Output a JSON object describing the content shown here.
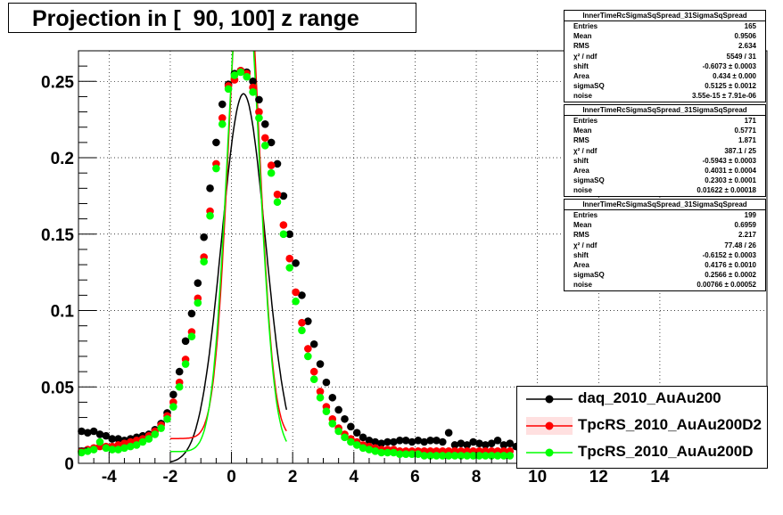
{
  "title": "Projection in [  90, 100] z range",
  "stats": [
    {
      "name": "InnerTimeRcSigmaSqSpread_31SigmaSqSpread",
      "rows": [
        [
          "Entries",
          "165"
        ],
        [
          "Mean",
          "0.9506"
        ],
        [
          "RMS",
          "2.634"
        ],
        [
          "χ² / ndf",
          "5549 / 31"
        ],
        [
          "shift",
          "-0.6073 ± 0.0003"
        ],
        [
          "Area",
          "0.434 ± 0.000"
        ],
        [
          "sigmaSQ",
          "0.5125 ± 0.0012"
        ],
        [
          "noise",
          "3.55e-15 ± 7.91e-06"
        ]
      ]
    },
    {
      "name": "InnerTimeRcSigmaSqSpread_31SigmaSqSpread",
      "rows": [
        [
          "Entries",
          "171"
        ],
        [
          "Mean",
          "0.5771"
        ],
        [
          "RMS",
          "1.871"
        ],
        [
          "χ² / ndf",
          "387.1 / 25"
        ],
        [
          "shift",
          "-0.5943 ± 0.0003"
        ],
        [
          "Area",
          "0.4031 ± 0.0004"
        ],
        [
          "sigmaSQ",
          "0.2303 ± 0.0001"
        ],
        [
          "noise",
          "0.01622 ± 0.00018"
        ]
      ]
    },
    {
      "name": "InnerTimeRcSigmaSqSpread_31SigmaSqSpread",
      "rows": [
        [
          "Entries",
          "199"
        ],
        [
          "Mean",
          "0.6959"
        ],
        [
          "RMS",
          "2.217"
        ],
        [
          "χ² / ndf",
          "77.48 / 26"
        ],
        [
          "shift",
          "-0.6152 ± 0.0003"
        ],
        [
          "Area",
          "0.4176 ± 0.0010"
        ],
        [
          "sigmaSQ",
          "0.2566 ± 0.0002"
        ],
        [
          "noise",
          "0.00766 ± 0.00052"
        ]
      ]
    }
  ],
  "legend": [
    {
      "label": "daq_2010_AuAu200",
      "color": "#000000"
    },
    {
      "label": "TpcRS_2010_AuAu200D2",
      "color": "#ff0000"
    },
    {
      "label": "TpcRS_2010_AuAu200D",
      "color": "#00ff00"
    }
  ],
  "chart_data": {
    "type": "scatter",
    "title": "Projection in [  90, 100] z range",
    "xlim": [
      -5,
      17.5
    ],
    "ylim": [
      0,
      0.27
    ],
    "xticks": [
      -4,
      -2,
      0,
      2,
      4,
      6,
      8,
      10,
      12,
      14
    ],
    "xtick_labels": [
      "-4",
      "-2",
      "0",
      "2",
      "4",
      "6",
      "8",
      "10",
      "12",
      "14"
    ],
    "yticks": [
      0,
      0.05,
      0.1,
      0.15,
      0.2,
      0.25
    ],
    "ytick_labels": [
      "0",
      "0.05",
      "0.1",
      "0.15",
      "0.2",
      "0.25"
    ],
    "grid": true,
    "series": [
      {
        "name": "daq_2010_AuAu200",
        "color": "#000000",
        "points": [
          [
            -4.9,
            0.021
          ],
          [
            -4.7,
            0.02
          ],
          [
            -4.5,
            0.021
          ],
          [
            -4.3,
            0.019
          ],
          [
            -4.1,
            0.018
          ],
          [
            -3.9,
            0.016
          ],
          [
            -3.7,
            0.016
          ],
          [
            -3.5,
            0.015
          ],
          [
            -3.3,
            0.016
          ],
          [
            -3.1,
            0.017
          ],
          [
            -2.9,
            0.018
          ],
          [
            -2.7,
            0.019
          ],
          [
            -2.5,
            0.022
          ],
          [
            -2.3,
            0.026
          ],
          [
            -2.1,
            0.033
          ],
          [
            -1.9,
            0.045
          ],
          [
            -1.7,
            0.06
          ],
          [
            -1.5,
            0.08
          ],
          [
            -1.3,
            0.098
          ],
          [
            -1.1,
            0.118
          ],
          [
            -0.9,
            0.148
          ],
          [
            -0.7,
            0.18
          ],
          [
            -0.5,
            0.21
          ],
          [
            -0.3,
            0.235
          ],
          [
            -0.1,
            0.248
          ],
          [
            0.1,
            0.255
          ],
          [
            0.3,
            0.257
          ],
          [
            0.5,
            0.256
          ],
          [
            0.7,
            0.25
          ],
          [
            0.9,
            0.238
          ],
          [
            1.1,
            0.222
          ],
          [
            1.3,
            0.21
          ],
          [
            1.5,
            0.196
          ],
          [
            1.7,
            0.175
          ],
          [
            1.9,
            0.15
          ],
          [
            2.1,
            0.131
          ],
          [
            2.3,
            0.11
          ],
          [
            2.5,
            0.093
          ],
          [
            2.7,
            0.078
          ],
          [
            2.9,
            0.065
          ],
          [
            3.1,
            0.053
          ],
          [
            3.3,
            0.043
          ],
          [
            3.5,
            0.035
          ],
          [
            3.7,
            0.029
          ],
          [
            3.9,
            0.024
          ],
          [
            4.1,
            0.02
          ],
          [
            4.3,
            0.017
          ],
          [
            4.5,
            0.015
          ],
          [
            4.7,
            0.014
          ],
          [
            4.9,
            0.013
          ],
          [
            5.1,
            0.014
          ],
          [
            5.3,
            0.014
          ],
          [
            5.5,
            0.015
          ],
          [
            5.7,
            0.015
          ],
          [
            5.9,
            0.014
          ],
          [
            6.1,
            0.015
          ],
          [
            6.3,
            0.014
          ],
          [
            6.5,
            0.015
          ],
          [
            6.7,
            0.015
          ],
          [
            6.9,
            0.014
          ],
          [
            7.1,
            0.02
          ],
          [
            7.3,
            0.012
          ],
          [
            7.5,
            0.013
          ],
          [
            7.7,
            0.012
          ],
          [
            7.9,
            0.014
          ],
          [
            8.1,
            0.013
          ],
          [
            8.3,
            0.012
          ],
          [
            8.5,
            0.013
          ],
          [
            8.7,
            0.015
          ],
          [
            8.9,
            0.012
          ],
          [
            9.1,
            0.013
          ],
          [
            9.3,
            0.011
          ],
          [
            9.5,
            0.012
          ],
          [
            9.7,
            0.01
          ]
        ]
      },
      {
        "name": "TpcRS_2010_AuAu200D2",
        "color": "#ff0000",
        "points": [
          [
            -4.9,
            0.008
          ],
          [
            -4.7,
            0.009
          ],
          [
            -4.5,
            0.01
          ],
          [
            -4.3,
            0.011
          ],
          [
            -4.1,
            0.011
          ],
          [
            -3.9,
            0.011
          ],
          [
            -3.7,
            0.012
          ],
          [
            -3.5,
            0.013
          ],
          [
            -3.3,
            0.014
          ],
          [
            -3.1,
            0.015
          ],
          [
            -2.9,
            0.016
          ],
          [
            -2.7,
            0.018
          ],
          [
            -2.5,
            0.021
          ],
          [
            -2.3,
            0.025
          ],
          [
            -2.1,
            0.031
          ],
          [
            -1.9,
            0.04
          ],
          [
            -1.7,
            0.053
          ],
          [
            -1.5,
            0.068
          ],
          [
            -1.3,
            0.086
          ],
          [
            -1.1,
            0.108
          ],
          [
            -0.9,
            0.135
          ],
          [
            -0.7,
            0.165
          ],
          [
            -0.5,
            0.196
          ],
          [
            -0.3,
            0.226
          ],
          [
            -0.1,
            0.247
          ],
          [
            0.1,
            0.251
          ],
          [
            0.3,
            0.257
          ],
          [
            0.5,
            0.255
          ],
          [
            0.7,
            0.246
          ],
          [
            0.9,
            0.23
          ],
          [
            1.1,
            0.213
          ],
          [
            1.3,
            0.195
          ],
          [
            1.5,
            0.176
          ],
          [
            1.7,
            0.156
          ],
          [
            1.9,
            0.134
          ],
          [
            2.1,
            0.112
          ],
          [
            2.3,
            0.092
          ],
          [
            2.5,
            0.075
          ],
          [
            2.7,
            0.06
          ],
          [
            2.9,
            0.047
          ],
          [
            3.1,
            0.037
          ],
          [
            3.3,
            0.029
          ],
          [
            3.5,
            0.023
          ],
          [
            3.7,
            0.019
          ],
          [
            3.9,
            0.016
          ],
          [
            4.1,
            0.014
          ],
          [
            4.3,
            0.012
          ],
          [
            4.5,
            0.011
          ],
          [
            4.7,
            0.01
          ],
          [
            4.9,
            0.009
          ],
          [
            5.1,
            0.009
          ],
          [
            5.3,
            0.009
          ],
          [
            5.5,
            0.008
          ],
          [
            5.7,
            0.008
          ],
          [
            5.9,
            0.008
          ],
          [
            6.1,
            0.008
          ],
          [
            6.3,
            0.008
          ],
          [
            6.5,
            0.008
          ],
          [
            6.7,
            0.008
          ],
          [
            6.9,
            0.008
          ],
          [
            7.1,
            0.008
          ],
          [
            7.3,
            0.008
          ],
          [
            7.5,
            0.008
          ],
          [
            7.7,
            0.008
          ],
          [
            7.9,
            0.008
          ],
          [
            8.1,
            0.008
          ],
          [
            8.3,
            0.008
          ],
          [
            8.5,
            0.008
          ],
          [
            8.7,
            0.008
          ],
          [
            8.9,
            0.008
          ],
          [
            9.1,
            0.008
          ]
        ]
      },
      {
        "name": "TpcRS_2010_AuAu200D",
        "color": "#00ff00",
        "points": [
          [
            -4.9,
            0.007
          ],
          [
            -4.7,
            0.008
          ],
          [
            -4.5,
            0.009
          ],
          [
            -4.3,
            0.014
          ],
          [
            -4.1,
            0.01
          ],
          [
            -3.9,
            0.009
          ],
          [
            -3.7,
            0.009
          ],
          [
            -3.5,
            0.01
          ],
          [
            -3.3,
            0.011
          ],
          [
            -3.1,
            0.012
          ],
          [
            -2.9,
            0.014
          ],
          [
            -2.7,
            0.016
          ],
          [
            -2.5,
            0.019
          ],
          [
            -2.3,
            0.023
          ],
          [
            -2.1,
            0.029
          ],
          [
            -1.9,
            0.037
          ],
          [
            -1.7,
            0.05
          ],
          [
            -1.5,
            0.065
          ],
          [
            -1.3,
            0.083
          ],
          [
            -1.1,
            0.105
          ],
          [
            -0.9,
            0.132
          ],
          [
            -0.7,
            0.162
          ],
          [
            -0.5,
            0.193
          ],
          [
            -0.3,
            0.222
          ],
          [
            -0.1,
            0.245
          ],
          [
            0.1,
            0.254
          ],
          [
            0.3,
            0.256
          ],
          [
            0.5,
            0.253
          ],
          [
            0.7,
            0.243
          ],
          [
            0.9,
            0.226
          ],
          [
            1.1,
            0.208
          ],
          [
            1.3,
            0.19
          ],
          [
            1.5,
            0.171
          ],
          [
            1.7,
            0.15
          ],
          [
            1.9,
            0.128
          ],
          [
            2.1,
            0.106
          ],
          [
            2.3,
            0.087
          ],
          [
            2.5,
            0.07
          ],
          [
            2.7,
            0.055
          ],
          [
            2.9,
            0.043
          ],
          [
            3.1,
            0.034
          ],
          [
            3.3,
            0.026
          ],
          [
            3.5,
            0.021
          ],
          [
            3.7,
            0.017
          ],
          [
            3.9,
            0.014
          ],
          [
            4.1,
            0.012
          ],
          [
            4.3,
            0.01
          ],
          [
            4.5,
            0.009
          ],
          [
            4.7,
            0.008
          ],
          [
            4.9,
            0.007
          ],
          [
            5.1,
            0.007
          ],
          [
            5.3,
            0.007
          ],
          [
            5.5,
            0.006
          ],
          [
            5.7,
            0.006
          ],
          [
            5.9,
            0.006
          ],
          [
            6.1,
            0.006
          ],
          [
            6.3,
            0.005
          ],
          [
            6.5,
            0.005
          ],
          [
            6.7,
            0.005
          ],
          [
            6.9,
            0.005
          ],
          [
            7.1,
            0.005
          ],
          [
            7.3,
            0.005
          ],
          [
            7.5,
            0.005
          ],
          [
            7.7,
            0.005
          ],
          [
            7.9,
            0.005
          ],
          [
            8.1,
            0.005
          ],
          [
            8.3,
            0.005
          ],
          [
            8.5,
            0.005
          ],
          [
            8.7,
            0.005
          ],
          [
            8.9,
            0.005
          ],
          [
            9.1,
            0.005
          ]
        ]
      }
    ],
    "fits": [
      {
        "color": "#000000",
        "shift": -0.6073,
        "area": 0.434,
        "sigmaSQ": 0.5125,
        "noise": 0.0,
        "xrange": [
          -2,
          1.8
        ]
      },
      {
        "color": "#ff0000",
        "shift": -0.5943,
        "area": 0.4031,
        "sigmaSQ": 0.2303,
        "noise": 0.01622,
        "xrange": [
          -2,
          1.8
        ]
      },
      {
        "color": "#00ff00",
        "shift": -0.6152,
        "area": 0.4176,
        "sigmaSQ": 0.2566,
        "noise": 0.00766,
        "xrange": [
          -2,
          1.8
        ]
      }
    ]
  }
}
